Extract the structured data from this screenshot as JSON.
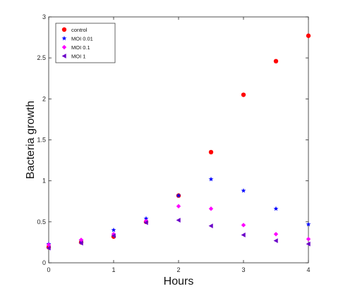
{
  "chart_data": {
    "type": "scatter",
    "title": "",
    "xlabel": "Hours",
    "ylabel": "Bacteria growth",
    "xlim": [
      0,
      4
    ],
    "ylim": [
      0,
      3
    ],
    "xticks": [
      0,
      1,
      2,
      3,
      4
    ],
    "yticks": [
      0,
      0.5,
      1,
      1.5,
      2,
      2.5,
      3
    ],
    "xtick_labels": [
      "0",
      "1",
      "2",
      "3",
      "4"
    ],
    "ytick_labels": [
      "0",
      "0.5",
      "1",
      "1.5",
      "2",
      "2.5",
      "3"
    ],
    "grid": false,
    "legend_position": "top-left",
    "series": [
      {
        "name": "control",
        "marker": "circle",
        "color": "#ff0000",
        "x": [
          0,
          0.5,
          1,
          1.5,
          2,
          2.5,
          3,
          3.5,
          4
        ],
        "y": [
          0.19,
          0.25,
          0.32,
          0.5,
          0.82,
          1.35,
          2.05,
          2.46,
          2.77
        ]
      },
      {
        "name": "MOI 0.01",
        "marker": "star",
        "color": "#0000ff",
        "x": [
          0,
          0.5,
          1,
          1.5,
          2,
          2.5,
          3,
          3.5,
          4
        ],
        "y": [
          0.23,
          0.27,
          0.4,
          0.54,
          0.82,
          1.02,
          0.88,
          0.66,
          0.47
        ]
      },
      {
        "name": "MOI 0.1",
        "marker": "diamond",
        "color": "#ff00ff",
        "x": [
          0,
          0.5,
          1,
          1.5,
          2,
          2.5,
          3,
          3.5,
          4
        ],
        "y": [
          0.22,
          0.28,
          0.35,
          0.51,
          0.69,
          0.66,
          0.46,
          0.35,
          0.29
        ]
      },
      {
        "name": "MOI 1",
        "marker": "triangle-left",
        "color": "#6a00c8",
        "x": [
          0,
          0.5,
          1,
          1.5,
          2,
          2.5,
          3,
          3.5,
          4
        ],
        "y": [
          0.18,
          0.24,
          0.33,
          0.49,
          0.52,
          0.45,
          0.34,
          0.27,
          0.23
        ]
      }
    ]
  }
}
